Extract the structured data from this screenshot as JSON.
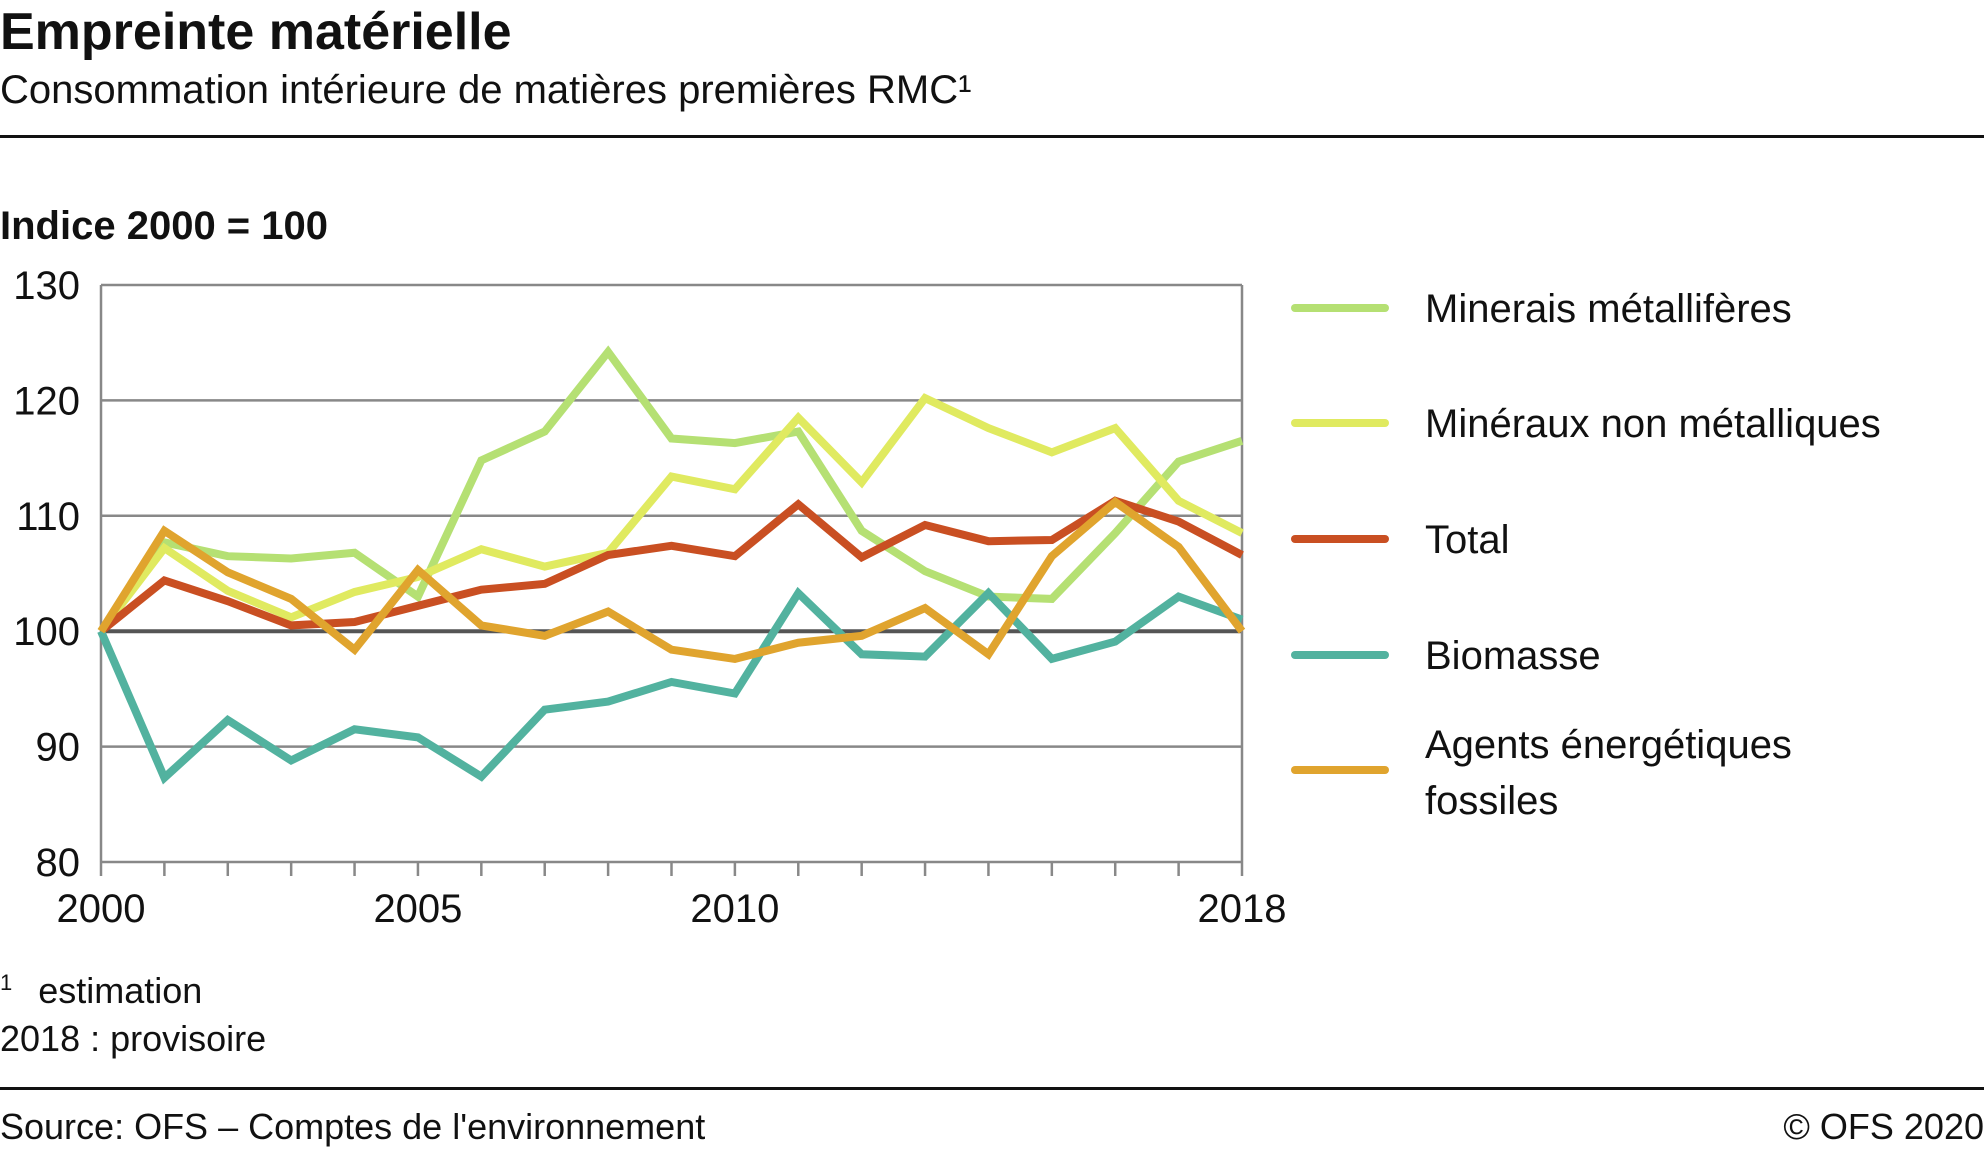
{
  "header": {
    "title": "Empreinte matérielle",
    "subtitle": "Consommation intérieure de matières premières RMC¹"
  },
  "footer": {
    "footnote_mark": "1",
    "footnote_text": "estimation",
    "provisional": "2018 : provisoire",
    "source": "Source: OFS – Comptes de l'environnement",
    "copyright": "© OFS 2020"
  },
  "chart_data": {
    "type": "line",
    "title": "Empreinte matérielle",
    "ylabel": "Indice 2000 = 100",
    "xlabel": "",
    "ylim": [
      80,
      130
    ],
    "xlim": [
      2000,
      2018
    ],
    "yticks": [
      80,
      90,
      100,
      110,
      120,
      130
    ],
    "xtick_labels": [
      "2000",
      "2005",
      "2010",
      "2018"
    ],
    "grid": true,
    "legend_position": "right",
    "x": [
      2000,
      2001,
      2002,
      2003,
      2004,
      2005,
      2006,
      2007,
      2008,
      2009,
      2010,
      2011,
      2012,
      2013,
      2014,
      2015,
      2016,
      2017,
      2018
    ],
    "series": [
      {
        "name": "Minerais métallifères",
        "color": "#b5e073",
        "values": [
          100,
          107.7,
          106.5,
          106.3,
          106.8,
          103,
          114.8,
          117.3,
          124.2,
          116.7,
          116.3,
          117.3,
          108.7,
          105.2,
          103,
          102.8,
          108.5,
          114.7,
          116.5
        ]
      },
      {
        "name": "Minéraux non métalliques",
        "color": "#e0ea60",
        "values": [
          100,
          107.2,
          103.5,
          101.2,
          103.4,
          104.7,
          107.1,
          105.6,
          106.8,
          113.4,
          112.3,
          118.5,
          112.9,
          120.2,
          117.6,
          115.5,
          117.6,
          111.3,
          108.5
        ]
      },
      {
        "name": "Total",
        "color": "#c94f22",
        "values": [
          100,
          104.4,
          102.6,
          100.5,
          100.8,
          102.2,
          103.6,
          104.1,
          106.6,
          107.4,
          106.5,
          111,
          106.4,
          109.2,
          107.8,
          107.9,
          111.3,
          109.5,
          106.6
        ]
      },
      {
        "name": "Biomasse",
        "color": "#52b29f",
        "values": [
          100,
          87.3,
          92.3,
          88.8,
          91.5,
          90.8,
          87.4,
          93.2,
          93.9,
          95.6,
          94.6,
          103.3,
          98,
          97.8,
          103.3,
          97.6,
          99.1,
          103,
          101
        ]
      },
      {
        "name": "Agents énergétiques fossiles",
        "name_lines": [
          "Agents énergétiques",
          "fossiles"
        ],
        "color": "#e0a42e",
        "values": [
          100,
          108.7,
          105.1,
          102.8,
          98.4,
          105.3,
          100.5,
          99.6,
          101.7,
          98.4,
          97.6,
          99,
          99.6,
          102,
          98,
          106.5,
          111.2,
          107.3,
          100
        ]
      }
    ]
  }
}
